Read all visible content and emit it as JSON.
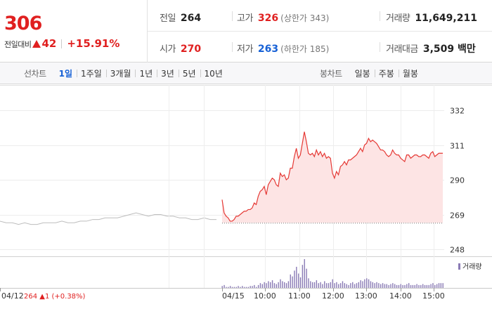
{
  "header": {
    "price": "306",
    "change_label": "전일대비",
    "change_value": "42",
    "change_rate": "+15.91%",
    "prev_close_label": "전일",
    "prev_close": "264",
    "high_label": "고가",
    "high": "326",
    "upper_limit": "(상한가 343)",
    "volume_label": "거래량",
    "volume": "11,649,211",
    "open_label": "시가",
    "open": "270",
    "low_label": "저가",
    "low": "263",
    "lower_limit": "(하한가 185)",
    "amount_label": "거래대금",
    "amount": "3,509 백만",
    "up_color": "#e02020",
    "down_color": "#1761d6"
  },
  "period_bar": {
    "line_title": "선차트",
    "line_items": [
      "1일",
      "1주일",
      "3개월",
      "1년",
      "3년",
      "5년",
      "10년"
    ],
    "line_active": 0,
    "candle_title": "봉차트",
    "candle_items": [
      "일봉",
      "주봉",
      "월봉"
    ]
  },
  "chart_data": {
    "type": "line",
    "y_ticks": [
      "332",
      "311",
      "290",
      "269",
      "248"
    ],
    "ylim": [
      248,
      332
    ],
    "x_ticks": [
      "04/15",
      "10:00",
      "11:00",
      "12:00",
      "13:00",
      "14:00",
      "15:00"
    ],
    "prev_day_label": "04/12",
    "prev_day_summary": "264 ▲1 (+0.38%)",
    "reference_price": 264,
    "prev_day_series": {
      "color": "#bdbdbd",
      "values": [
        265,
        264,
        264,
        263,
        264,
        263,
        263,
        264,
        264,
        264,
        265,
        264,
        264,
        265,
        265,
        266,
        266,
        267,
        267,
        267,
        268,
        269,
        270,
        269,
        268,
        269,
        269,
        268,
        268,
        267,
        267,
        266,
        266,
        267,
        266,
        266
      ]
    },
    "series": [
      {
        "color": "#e53935",
        "fill": "#fde4e4",
        "values": [
          278,
          270,
          268,
          267,
          265,
          265,
          266,
          268,
          268,
          269,
          270,
          271,
          271,
          272,
          272,
          273,
          276,
          275,
          280,
          283,
          284,
          286,
          281,
          287,
          289,
          291,
          290,
          287,
          286,
          294,
          292,
          293,
          290,
          291,
          297,
          297,
          304,
          309,
          303,
          305,
          312,
          319,
          313,
          306,
          305,
          306,
          304,
          308,
          305,
          307,
          304,
          306,
          303,
          304,
          303,
          294,
          291,
          295,
          293,
          298,
          299,
          301,
          299,
          302,
          302,
          303,
          304,
          305,
          307,
          309,
          307,
          311,
          312,
          315,
          313,
          314,
          313,
          312,
          310,
          308,
          308,
          307,
          305,
          304,
          305,
          308,
          306,
          305,
          305,
          303,
          302,
          301,
          305,
          305,
          303,
          304,
          305,
          305,
          304,
          304,
          305,
          305,
          304,
          303,
          306,
          307,
          304,
          305,
          306,
          306,
          306
        ]
      }
    ],
    "volume_legend": "거래량",
    "volume_color": "#8a7bb5",
    "volume": [
      2,
      3,
      1,
      1,
      2,
      1,
      1,
      1,
      2,
      1,
      2,
      1,
      1,
      1,
      2,
      2,
      3,
      1,
      3,
      5,
      4,
      6,
      5,
      7,
      6,
      8,
      5,
      4,
      6,
      9,
      7,
      6,
      5,
      7,
      14,
      12,
      18,
      22,
      15,
      11,
      24,
      30,
      20,
      10,
      7,
      6,
      6,
      8,
      5,
      6,
      4,
      7,
      5,
      5,
      6,
      9,
      5,
      6,
      4,
      5,
      7,
      5,
      4,
      3,
      5,
      6,
      4,
      5,
      6,
      8,
      7,
      9,
      10,
      9,
      7,
      6,
      5,
      6,
      5,
      4,
      5,
      4,
      4,
      3,
      4,
      5,
      4,
      3,
      3,
      4,
      3,
      3,
      4,
      5,
      3,
      3,
      3,
      4,
      3,
      3,
      4,
      3,
      3,
      3,
      4,
      5,
      3,
      4,
      5,
      5,
      5
    ],
    "volume_max": 30
  }
}
